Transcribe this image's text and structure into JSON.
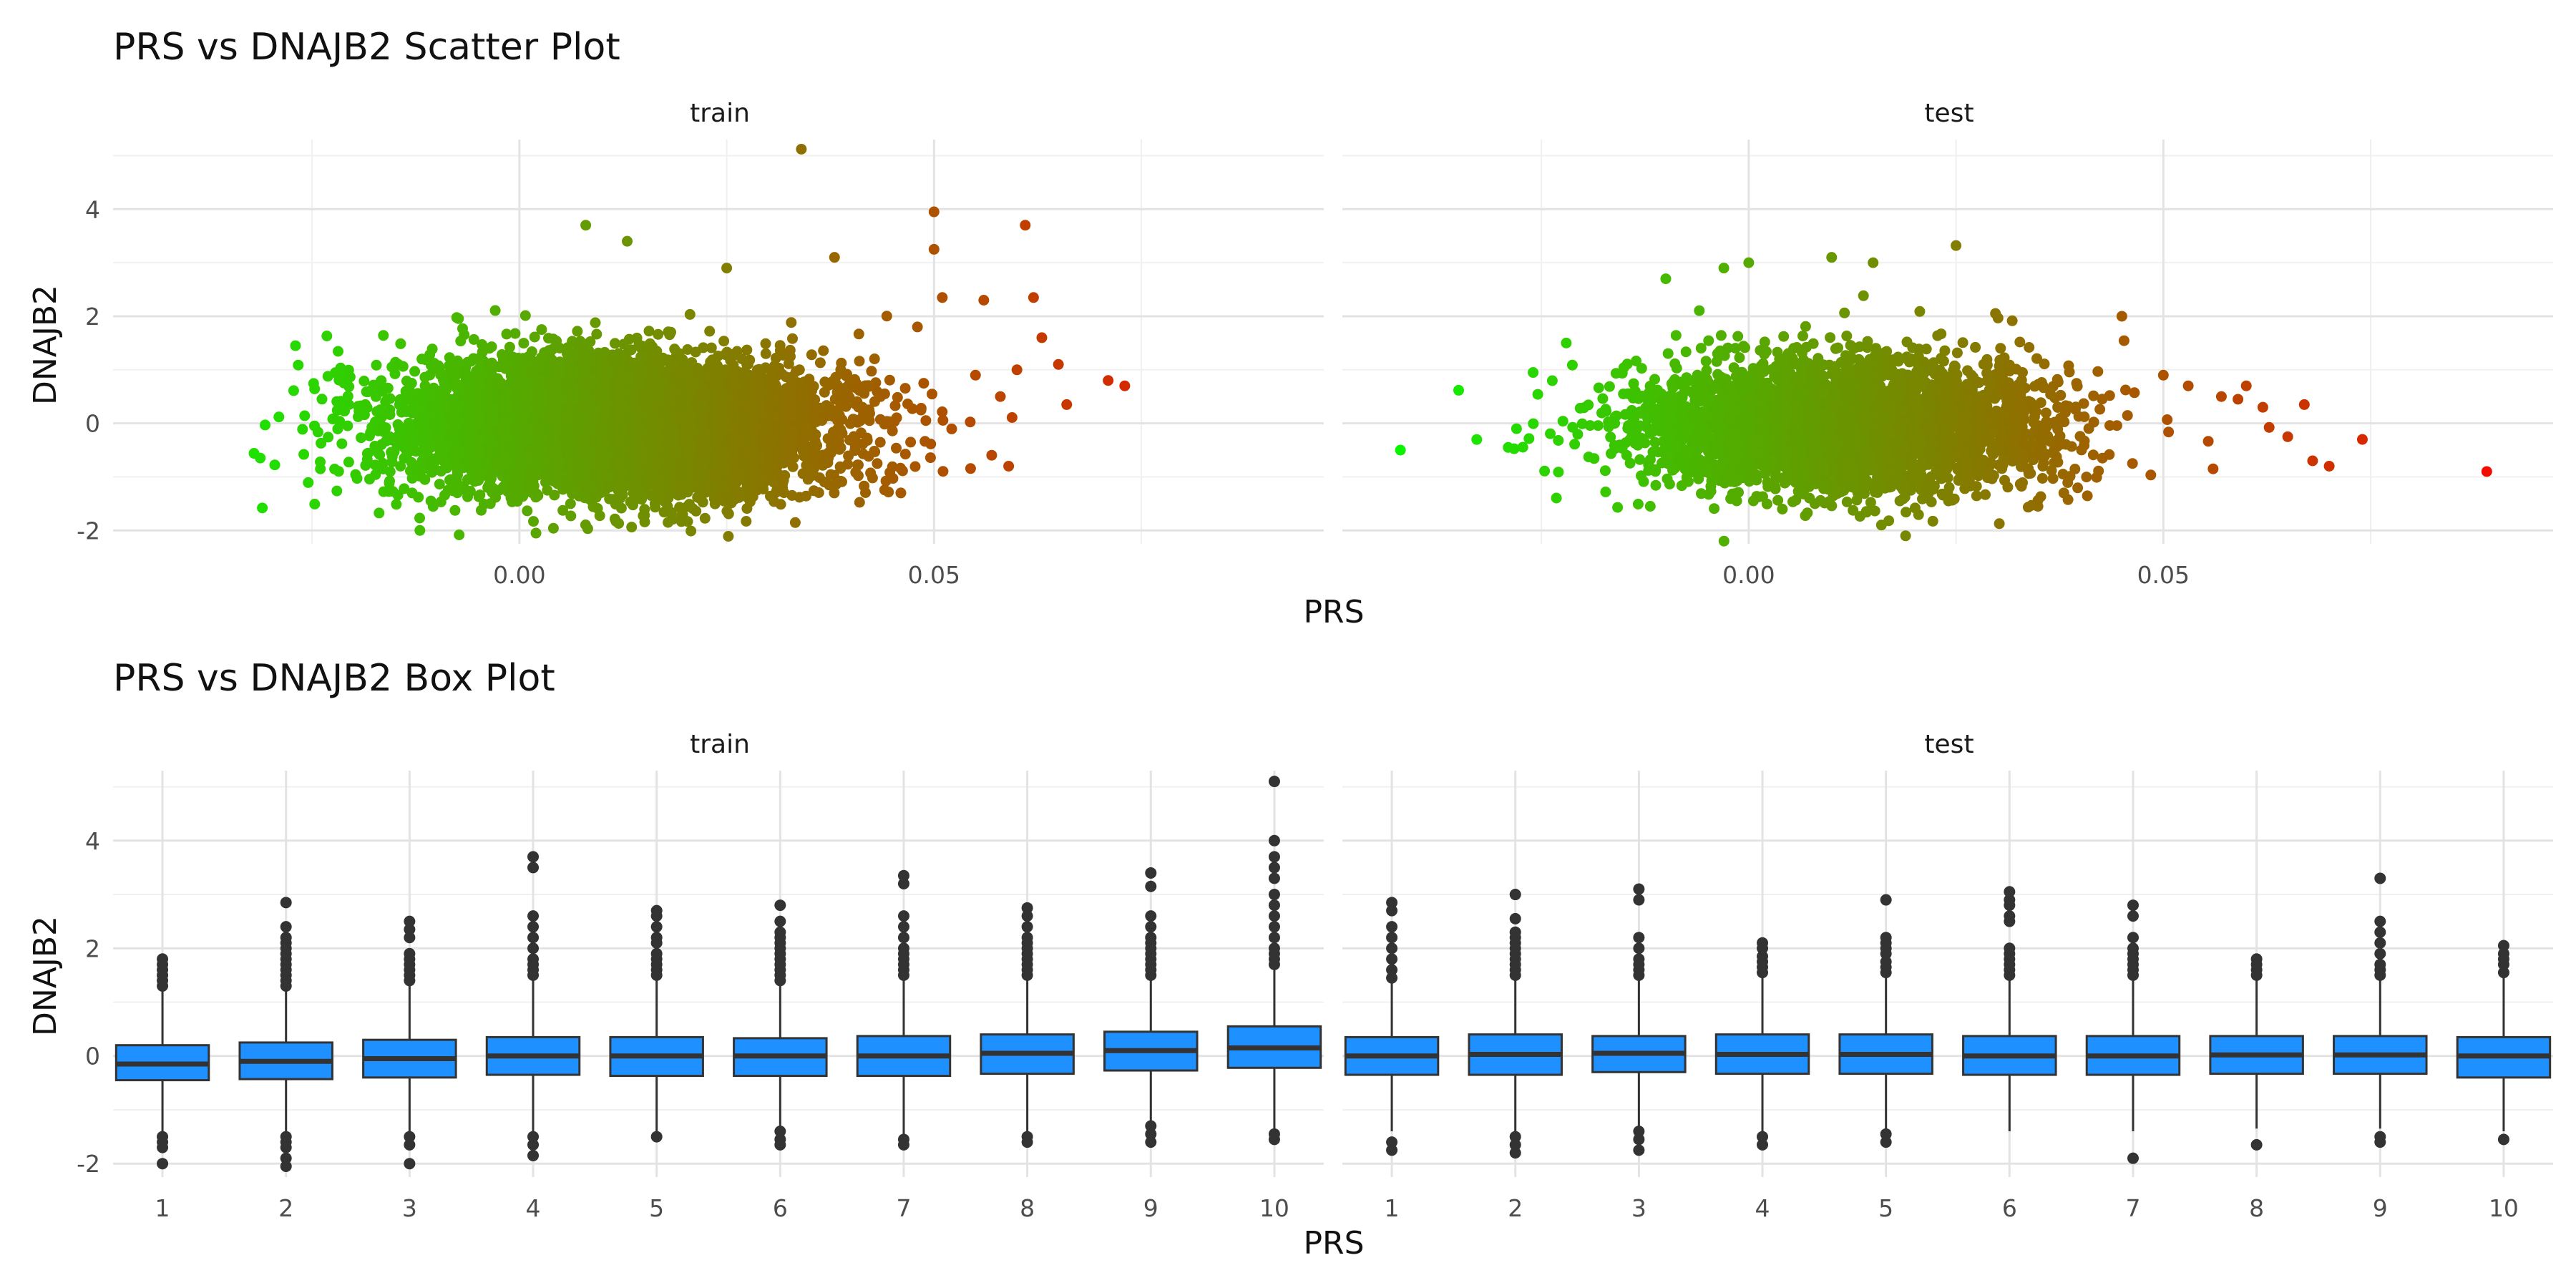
{
  "chart_data": [
    {
      "type": "scatter",
      "title": "PRS vs DNAJB2 Scatter Plot",
      "xlabel": "PRS",
      "ylabel": "DNAJB2",
      "xlim": [
        -0.049,
        0.097
      ],
      "ylim": [
        -2.25,
        5.3
      ],
      "x_ticks": [
        "0.00",
        "0.05"
      ],
      "x_tick_values": [
        0.0,
        0.05
      ],
      "y_ticks": [
        "-2",
        "0",
        "2",
        "4"
      ],
      "y_tick_values": [
        -2,
        0,
        2,
        4
      ],
      "grid": true,
      "color_scale": {
        "low": "#00ff00",
        "high": "#ff0000",
        "by": "PRS"
      },
      "panels": [
        {
          "label": "train",
          "cloud": {
            "x_mean": 0.012,
            "x_sd": 0.0125,
            "y_mean": -0.05,
            "y_sd": 0.62,
            "n": 7000
          },
          "outliers": [
            {
              "x": -0.032,
              "y": -0.56
            },
            {
              "x": -0.031,
              "y": -1.58
            },
            {
              "x": -0.027,
              "y": 1.45
            },
            {
              "x": -0.029,
              "y": 0.12
            },
            {
              "x": -0.026,
              "y": -0.58
            },
            {
              "x": -0.024,
              "y": -0.85
            },
            {
              "x": -0.012,
              "y": -2.0
            },
            {
              "x": 0.002,
              "y": -2.05
            },
            {
              "x": 0.008,
              "y": 3.7
            },
            {
              "x": 0.013,
              "y": 3.4
            },
            {
              "x": 0.025,
              "y": 2.9
            },
            {
              "x": 0.034,
              "y": 5.12
            },
            {
              "x": 0.038,
              "y": 3.1
            },
            {
              "x": 0.05,
              "y": 3.95
            },
            {
              "x": 0.05,
              "y": 3.25
            },
            {
              "x": 0.051,
              "y": 2.35
            },
            {
              "x": 0.056,
              "y": 2.3
            },
            {
              "x": 0.061,
              "y": 3.7
            },
            {
              "x": 0.062,
              "y": 2.35
            },
            {
              "x": 0.063,
              "y": 1.6
            },
            {
              "x": 0.065,
              "y": 1.1
            },
            {
              "x": 0.066,
              "y": 0.35
            },
            {
              "x": 0.071,
              "y": 0.8
            },
            {
              "x": 0.073,
              "y": 0.7
            },
            {
              "x": 0.059,
              "y": -0.8
            },
            {
              "x": 0.058,
              "y": 0.5
            },
            {
              "x": 0.055,
              "y": 0.9
            },
            {
              "x": 0.06,
              "y": 1.0
            },
            {
              "x": 0.048,
              "y": 1.8
            },
            {
              "x": 0.046,
              "y": -1.3
            }
          ]
        },
        {
          "label": "test",
          "cloud": {
            "x_mean": 0.012,
            "x_sd": 0.0125,
            "y_mean": -0.05,
            "y_sd": 0.62,
            "n": 3500
          },
          "outliers": [
            {
              "x": -0.042,
              "y": -0.5
            },
            {
              "x": -0.029,
              "y": -0.45
            },
            {
              "x": -0.028,
              "y": -0.1
            },
            {
              "x": -0.026,
              "y": 0.95
            },
            {
              "x": -0.022,
              "y": 1.5
            },
            {
              "x": -0.01,
              "y": 2.7
            },
            {
              "x": -0.003,
              "y": 2.9
            },
            {
              "x": 0.0,
              "y": 3.0
            },
            {
              "x": 0.01,
              "y": 3.1
            },
            {
              "x": 0.015,
              "y": 3.0
            },
            {
              "x": 0.025,
              "y": 3.32
            },
            {
              "x": 0.016,
              "y": -1.9
            },
            {
              "x": 0.038,
              "y": -1.3
            },
            {
              "x": 0.045,
              "y": 2.0
            },
            {
              "x": 0.053,
              "y": 0.7
            },
            {
              "x": 0.057,
              "y": 0.5
            },
            {
              "x": 0.059,
              "y": 0.45
            },
            {
              "x": 0.062,
              "y": 0.3
            },
            {
              "x": 0.065,
              "y": -0.25
            },
            {
              "x": 0.067,
              "y": 0.35
            },
            {
              "x": 0.068,
              "y": -0.7
            },
            {
              "x": 0.07,
              "y": -0.8
            },
            {
              "x": 0.074,
              "y": -0.3
            },
            {
              "x": 0.056,
              "y": -0.85
            },
            {
              "x": 0.06,
              "y": 0.7
            },
            {
              "x": 0.05,
              "y": 0.9
            },
            {
              "x": 0.089,
              "y": -0.9
            }
          ]
        }
      ]
    },
    {
      "type": "box",
      "title": "PRS vs DNAJB2 Box Plot",
      "xlabel": "PRS",
      "ylabel": "DNAJB2",
      "categories": [
        "1",
        "2",
        "3",
        "4",
        "5",
        "6",
        "7",
        "8",
        "9",
        "10"
      ],
      "ylim": [
        -2.25,
        5.3
      ],
      "y_ticks": [
        "-2",
        "0",
        "2",
        "4"
      ],
      "y_tick_values": [
        -2,
        0,
        2,
        4
      ],
      "fill": "#1e90ff",
      "grid": true,
      "panels": [
        {
          "label": "train",
          "boxes": [
            {
              "q1": -0.45,
              "median": -0.15,
              "q3": 0.2,
              "whisker_low": -1.45,
              "whisker_high": 1.2,
              "outliers": [
                1.3,
                1.4,
                1.5,
                1.6,
                1.7,
                1.8,
                -1.5,
                -1.6,
                -1.7,
                -2.0
              ]
            },
            {
              "q1": -0.43,
              "median": -0.1,
              "q3": 0.25,
              "whisker_low": -1.45,
              "whisker_high": 1.25,
              "outliers": [
                1.3,
                1.4,
                1.5,
                1.6,
                1.7,
                1.8,
                1.9,
                2.0,
                2.1,
                2.2,
                2.4,
                2.85,
                -1.5,
                -1.6,
                -1.7,
                -1.9,
                -2.05
              ]
            },
            {
              "q1": -0.4,
              "median": -0.05,
              "q3": 0.3,
              "whisker_low": -1.4,
              "whisker_high": 1.35,
              "outliers": [
                1.4,
                1.5,
                1.6,
                1.7,
                1.8,
                1.9,
                2.2,
                2.35,
                2.5,
                -1.5,
                -1.65,
                -2.0
              ]
            },
            {
              "q1": -0.35,
              "median": 0.0,
              "q3": 0.35,
              "whisker_low": -1.4,
              "whisker_high": 1.4,
              "outliers": [
                1.5,
                1.6,
                1.7,
                1.8,
                2.0,
                2.2,
                2.4,
                2.6,
                3.5,
                3.7,
                -1.5,
                -1.65,
                -1.85
              ]
            },
            {
              "q1": -0.37,
              "median": 0.0,
              "q3": 0.35,
              "whisker_low": -1.4,
              "whisker_high": 1.4,
              "outliers": [
                1.5,
                1.6,
                1.7,
                1.8,
                1.9,
                2.1,
                2.2,
                2.4,
                2.6,
                2.7,
                -1.5
              ]
            },
            {
              "q1": -0.37,
              "median": 0.0,
              "q3": 0.33,
              "whisker_low": -1.35,
              "whisker_high": 1.3,
              "outliers": [
                1.4,
                1.5,
                1.6,
                1.7,
                1.8,
                1.9,
                2.0,
                2.1,
                2.2,
                2.3,
                2.5,
                2.8,
                -1.4,
                -1.55,
                -1.65
              ]
            },
            {
              "q1": -0.37,
              "median": 0.0,
              "q3": 0.37,
              "whisker_low": -1.45,
              "whisker_high": 1.45,
              "outliers": [
                1.5,
                1.6,
                1.7,
                1.8,
                1.9,
                2.0,
                2.2,
                2.4,
                2.6,
                3.2,
                3.35,
                -1.55,
                -1.65
              ]
            },
            {
              "q1": -0.33,
              "median": 0.05,
              "q3": 0.4,
              "whisker_low": -1.4,
              "whisker_high": 1.45,
              "outliers": [
                1.5,
                1.6,
                1.7,
                1.8,
                1.9,
                2.0,
                2.1,
                2.2,
                2.4,
                2.6,
                2.75,
                -1.5,
                -1.6
              ]
            },
            {
              "q1": -0.27,
              "median": 0.1,
              "q3": 0.45,
              "whisker_low": -1.25,
              "whisker_high": 1.45,
              "outliers": [
                1.5,
                1.6,
                1.7,
                1.8,
                1.9,
                2.0,
                2.1,
                2.2,
                2.4,
                2.6,
                3.15,
                3.4,
                -1.3,
                -1.45,
                -1.6
              ]
            },
            {
              "q1": -0.22,
              "median": 0.15,
              "q3": 0.55,
              "whisker_low": -1.35,
              "whisker_high": 1.6,
              "outliers": [
                1.7,
                1.8,
                1.9,
                2.0,
                2.2,
                2.4,
                2.6,
                2.8,
                3.0,
                3.3,
                3.5,
                3.7,
                4.0,
                5.1,
                -1.45,
                -1.55
              ]
            }
          ]
        },
        {
          "label": "test",
          "boxes": [
            {
              "q1": -0.35,
              "median": 0.0,
              "q3": 0.35,
              "whisker_low": -1.4,
              "whisker_high": 1.35,
              "outliers": [
                1.45,
                1.6,
                1.8,
                2.0,
                2.2,
                2.4,
                2.7,
                2.85,
                -1.6,
                -1.75
              ]
            },
            {
              "q1": -0.35,
              "median": 0.03,
              "q3": 0.4,
              "whisker_low": -1.4,
              "whisker_high": 1.45,
              "outliers": [
                1.5,
                1.6,
                1.7,
                1.8,
                1.9,
                2.0,
                2.1,
                2.2,
                2.3,
                2.55,
                3.0,
                -1.5,
                -1.65,
                -1.8
              ]
            },
            {
              "q1": -0.3,
              "median": 0.05,
              "q3": 0.37,
              "whisker_low": -1.3,
              "whisker_high": 1.4,
              "outliers": [
                1.5,
                1.6,
                1.7,
                1.8,
                2.0,
                2.2,
                2.9,
                3.1,
                -1.4,
                -1.55,
                -1.75
              ]
            },
            {
              "q1": -0.33,
              "median": 0.03,
              "q3": 0.4,
              "whisker_low": -1.4,
              "whisker_high": 1.45,
              "outliers": [
                1.55,
                1.65,
                1.75,
                1.85,
                2.0,
                2.1,
                -1.5,
                -1.65
              ]
            },
            {
              "q1": -0.33,
              "median": 0.03,
              "q3": 0.4,
              "whisker_low": -1.35,
              "whisker_high": 1.45,
              "outliers": [
                1.55,
                1.65,
                1.75,
                1.9,
                2.0,
                2.1,
                2.2,
                2.9,
                -1.45,
                -1.6
              ]
            },
            {
              "q1": -0.35,
              "median": 0.0,
              "q3": 0.37,
              "whisker_low": -1.4,
              "whisker_high": 1.4,
              "outliers": [
                1.5,
                1.6,
                1.7,
                1.8,
                1.9,
                2.0,
                2.5,
                2.6,
                2.8,
                2.9,
                3.05
              ]
            },
            {
              "q1": -0.35,
              "median": 0.0,
              "q3": 0.37,
              "whisker_low": -1.4,
              "whisker_high": 1.4,
              "outliers": [
                1.5,
                1.6,
                1.7,
                1.8,
                1.9,
                2.0,
                2.2,
                2.6,
                2.8,
                -1.9
              ]
            },
            {
              "q1": -0.33,
              "median": 0.02,
              "q3": 0.37,
              "whisker_low": -1.35,
              "whisker_high": 1.4,
              "outliers": [
                1.5,
                1.6,
                1.7,
                1.8,
                -1.65
              ]
            },
            {
              "q1": -0.33,
              "median": 0.02,
              "q3": 0.37,
              "whisker_low": -1.35,
              "whisker_high": 1.4,
              "outliers": [
                1.5,
                1.6,
                1.7,
                1.9,
                2.1,
                2.3,
                2.5,
                3.3,
                -1.5,
                -1.6
              ]
            },
            {
              "q1": -0.4,
              "median": 0.0,
              "q3": 0.35,
              "whisker_low": -1.4,
              "whisker_high": 1.45,
              "outliers": [
                1.55,
                1.7,
                1.8,
                1.9,
                2.05,
                -1.55
              ]
            }
          ]
        }
      ]
    }
  ]
}
